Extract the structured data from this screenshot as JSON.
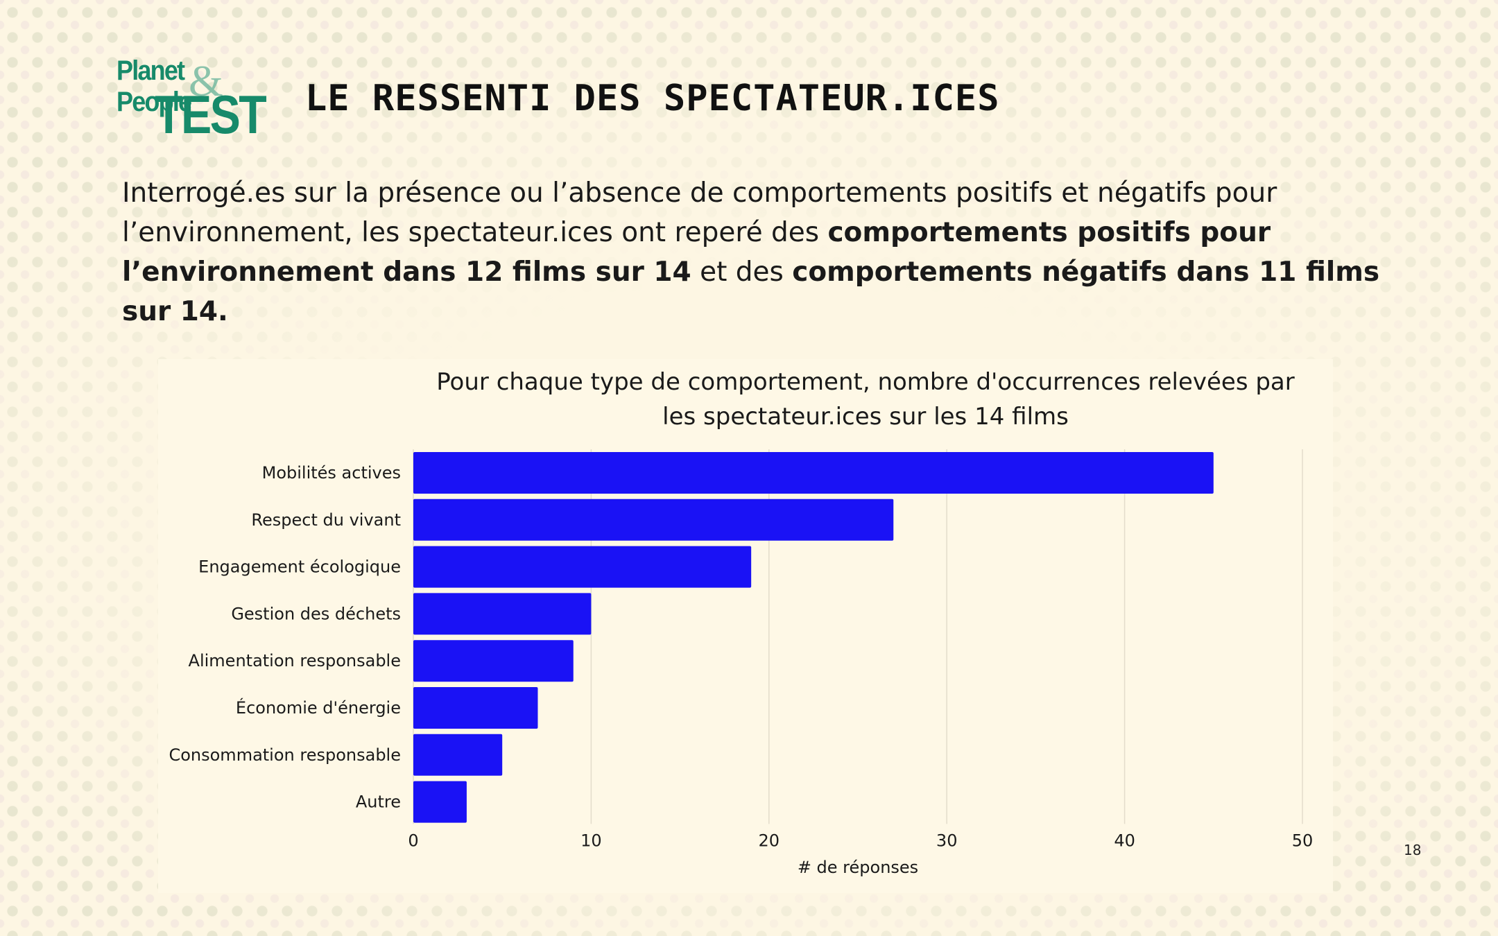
{
  "logo": {
    "line1": "Planet",
    "amp": "&",
    "line1b": "People",
    "line2": "TEST"
  },
  "header": {
    "title": "LE RESSENTI DES SPECTATEUR.ICES"
  },
  "intro": {
    "part1": "Interrogé.es sur la présence ou l’absence de comportements positifs et négatifs pour l’environnement, les spectateur.ices ont reperé des ",
    "bold1": "comportements positifs pour l’environnement dans 12 films sur 14",
    "part2": " et des ",
    "bold2": "comportements négatifs dans 11 films sur 14."
  },
  "chart_data": {
    "type": "bar",
    "orientation": "horizontal",
    "title_line1": "Pour chaque type de comportement, nombre d'occurrences relevées par",
    "title_line2": "les spectateur.ices sur les 14 films",
    "categories": [
      "Mobilités actives",
      "Respect du vivant",
      "Engagement écologique",
      "Gestion des déchets",
      "Alimentation responsable",
      "Économie d'énergie",
      "Consommation responsable",
      "Autre"
    ],
    "values": [
      45,
      27,
      19,
      10,
      9,
      7,
      5,
      3
    ],
    "xlabel": "# de réponses",
    "xlim": [
      0,
      50
    ],
    "xticks": [
      0,
      10,
      20,
      30,
      40,
      50
    ],
    "bar_color": "#1a12f5",
    "grid": true
  },
  "page_number": "18"
}
